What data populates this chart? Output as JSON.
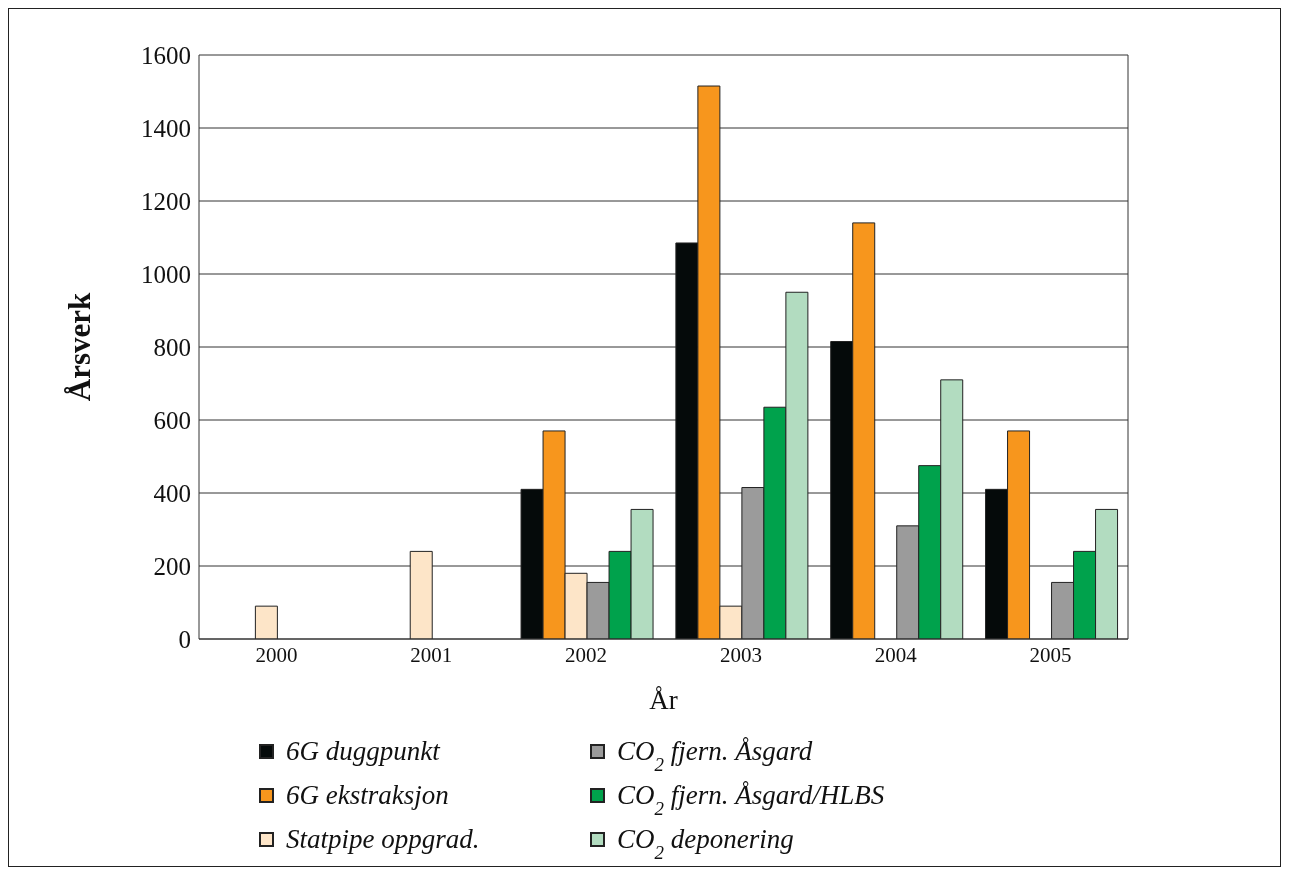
{
  "chart_data": {
    "type": "bar",
    "xlabel": "År",
    "ylabel": "Årsverk",
    "categories": [
      "2000",
      "2001",
      "2002",
      "2003",
      "2004",
      "2005"
    ],
    "series": [
      {
        "name": "6G duggpunkt",
        "color": "#050a0a",
        "values": [
          null,
          null,
          410,
          1085,
          815,
          410
        ]
      },
      {
        "name": "6G ekstraksjon",
        "color": "#f7961d",
        "values": [
          null,
          null,
          570,
          1515,
          1140,
          570
        ]
      },
      {
        "name": "Statpipe oppgrad.",
        "color": "#fde5c8",
        "values": [
          90,
          240,
          180,
          90,
          null,
          null
        ]
      },
      {
        "name": "CO$_{2}$ fjern. Åsgard",
        "color": "#9b9b9b",
        "values": [
          null,
          null,
          155,
          415,
          310,
          155
        ]
      },
      {
        "name": "CO$_{2}$ fjern. Åsgard/HLBS",
        "color": "#00a24c",
        "values": [
          null,
          null,
          240,
          635,
          475,
          240
        ]
      },
      {
        "name": "CO$_{2}$ deponering",
        "color": "#b2dcc0",
        "values": [
          null,
          null,
          355,
          950,
          710,
          355
        ]
      }
    ],
    "ylim": [
      0,
      1600
    ],
    "yticks": [
      0,
      200,
      400,
      600,
      800,
      1000,
      1200,
      1400,
      1600
    ],
    "grid": "y",
    "legend": "bottom"
  }
}
